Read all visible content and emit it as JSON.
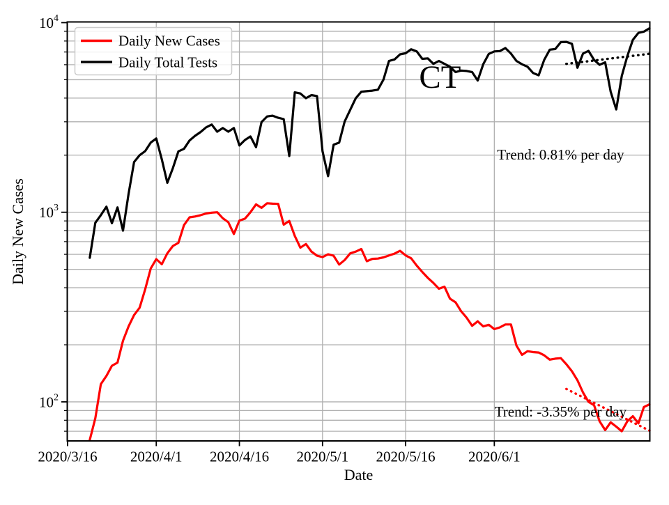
{
  "chart_data": {
    "type": "line",
    "y_scale": "log",
    "xlabel": "Date",
    "ylabel": "Daily New Cases",
    "ylim": [
      62.5,
      10000
    ],
    "grid_color": "#b0b0b0",
    "x_axis": {
      "total_days": 105,
      "start_date": "2020/3/16",
      "ticks": [
        {
          "day": 0,
          "label": "2020/3/16"
        },
        {
          "day": 16,
          "label": "2020/4/1"
        },
        {
          "day": 31,
          "label": "2020/4/16"
        },
        {
          "day": 46,
          "label": "2020/5/1"
        },
        {
          "day": 61,
          "label": "2020/5/16"
        },
        {
          "day": 77,
          "label": "2020/6/1"
        }
      ]
    },
    "y_ticks": [
      {
        "value": 100,
        "label": "10^2"
      },
      {
        "value": 1000,
        "label": "10^3"
      },
      {
        "value": 10000,
        "label": "10^4"
      }
    ],
    "annotation": {
      "text": "CT",
      "day": 67.2,
      "value": 4530
    },
    "series": [
      {
        "name": "Daily New Cases",
        "color": "#ff0000",
        "start_date": "2020/3/20",
        "start_day": 4,
        "values": [
          63,
          82,
          124,
          137,
          155,
          161,
          210,
          250,
          287,
          314,
          392,
          505,
          566,
          532,
          607,
          664,
          690,
          855,
          940,
          950,
          965,
          985,
          995,
          1000,
          930,
          886,
          768,
          903,
          925,
          1000,
          1100,
          1055,
          1115,
          1110,
          1107,
          860,
          900,
          750,
          650,
          680,
          620,
          590,
          580,
          600,
          590,
          530,
          560,
          607,
          620,
          640,
          552,
          568,
          570,
          578,
          592,
          605,
          626,
          592,
          572,
          523,
          484,
          451,
          424,
          395,
          405,
          350,
          335,
          301,
          278,
          252,
          266,
          250,
          255,
          242,
          247,
          256,
          256,
          198,
          177,
          185,
          183,
          182,
          176,
          167,
          169,
          170,
          158,
          145,
          130,
          112,
          100,
          96,
          79,
          71,
          78,
          74,
          70,
          79,
          84,
          77,
          94,
          97
        ]
      },
      {
        "name": "Daily Total Tests",
        "color": "#000000",
        "start_date": "2020/3/20",
        "start_day": 4,
        "values": [
          575,
          880,
          965,
          1070,
          875,
          1060,
          800,
          1250,
          1840,
          2000,
          2100,
          2330,
          2450,
          1900,
          1430,
          1710,
          2095,
          2160,
          2390,
          2530,
          2650,
          2805,
          2900,
          2660,
          2780,
          2660,
          2780,
          2250,
          2405,
          2510,
          2204,
          2990,
          3200,
          3230,
          3150,
          3100,
          1980,
          4290,
          4230,
          3995,
          4150,
          4100,
          2100,
          1550,
          2270,
          2330,
          3010,
          3470,
          3995,
          4320,
          4350,
          4380,
          4430,
          5010,
          6280,
          6400,
          6805,
          6900,
          7240,
          7050,
          6440,
          6480,
          6060,
          6280,
          6060,
          5855,
          5485,
          5590,
          5560,
          5485,
          4950,
          6030,
          6840,
          7050,
          7080,
          7345,
          6870,
          6280,
          6030,
          5855,
          5425,
          5275,
          6360,
          7200,
          7260,
          7890,
          7920,
          7730,
          5780,
          6870,
          7100,
          6360,
          5990,
          6180,
          4320,
          3485,
          5225,
          6660,
          8110,
          8830,
          8970,
          9340
        ]
      }
    ],
    "trend_lines": [
      {
        "series": "Daily Total Tests",
        "label": "Trend: 0.81% per day",
        "color": "#000000",
        "start_day": 90,
        "start_value": 6060,
        "end_day": 105,
        "end_value": 6850,
        "label_anchor": {
          "day": 77.5,
          "value": 1900
        }
      },
      {
        "series": "Daily New Cases",
        "label": "Trend: -3.35% per day",
        "color": "#ff0000",
        "start_day": 90,
        "start_value": 117,
        "end_day": 105,
        "end_value": 70.5,
        "label_anchor": {
          "day": 77.05,
          "value": 83.6
        }
      }
    ],
    "legend": {
      "entries": [
        "Daily New Cases",
        "Daily Total Tests"
      ]
    }
  }
}
